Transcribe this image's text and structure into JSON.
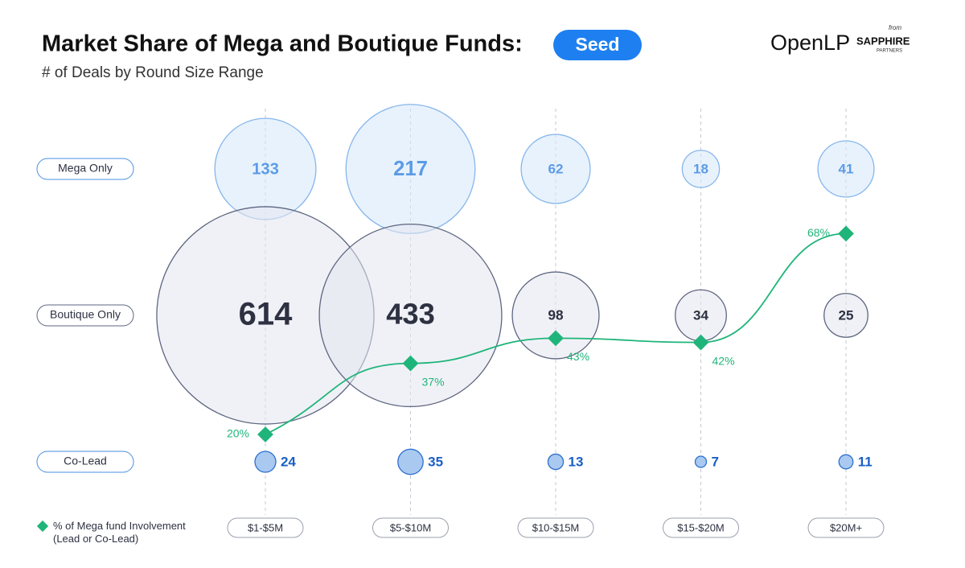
{
  "title": "Market Share of Mega and Boutique Funds:",
  "badge": "Seed",
  "subtitle": "# of Deals by Round Size Range",
  "logo": {
    "brand": "OpenLP",
    "from": "from",
    "partner": "SAPPHIRE",
    "partner_sub": "PARTNERS"
  },
  "chart_data": {
    "type": "bubble",
    "categories": [
      "$1-$5M",
      "$5-$10M",
      "$10-$15M",
      "$15-$20M",
      "$20M+"
    ],
    "series": [
      {
        "name": "Mega Only",
        "color": "#5b9be6",
        "values": [
          133,
          217,
          62,
          18,
          41
        ]
      },
      {
        "name": "Boutique Only",
        "color": "#2d3142",
        "values": [
          614,
          433,
          98,
          34,
          25
        ]
      },
      {
        "name": "Co-Lead",
        "color": "#1a5fc4",
        "values": [
          24,
          35,
          13,
          7,
          11
        ]
      }
    ],
    "line": {
      "type": "line",
      "name": "% of Mega fund Involvement (Lead or Co-Lead)",
      "color": "#1fb57a",
      "values": [
        20,
        37,
        43,
        42,
        68
      ],
      "value_labels": [
        "20%",
        "37%",
        "43%",
        "42%",
        "68%"
      ]
    }
  }
}
